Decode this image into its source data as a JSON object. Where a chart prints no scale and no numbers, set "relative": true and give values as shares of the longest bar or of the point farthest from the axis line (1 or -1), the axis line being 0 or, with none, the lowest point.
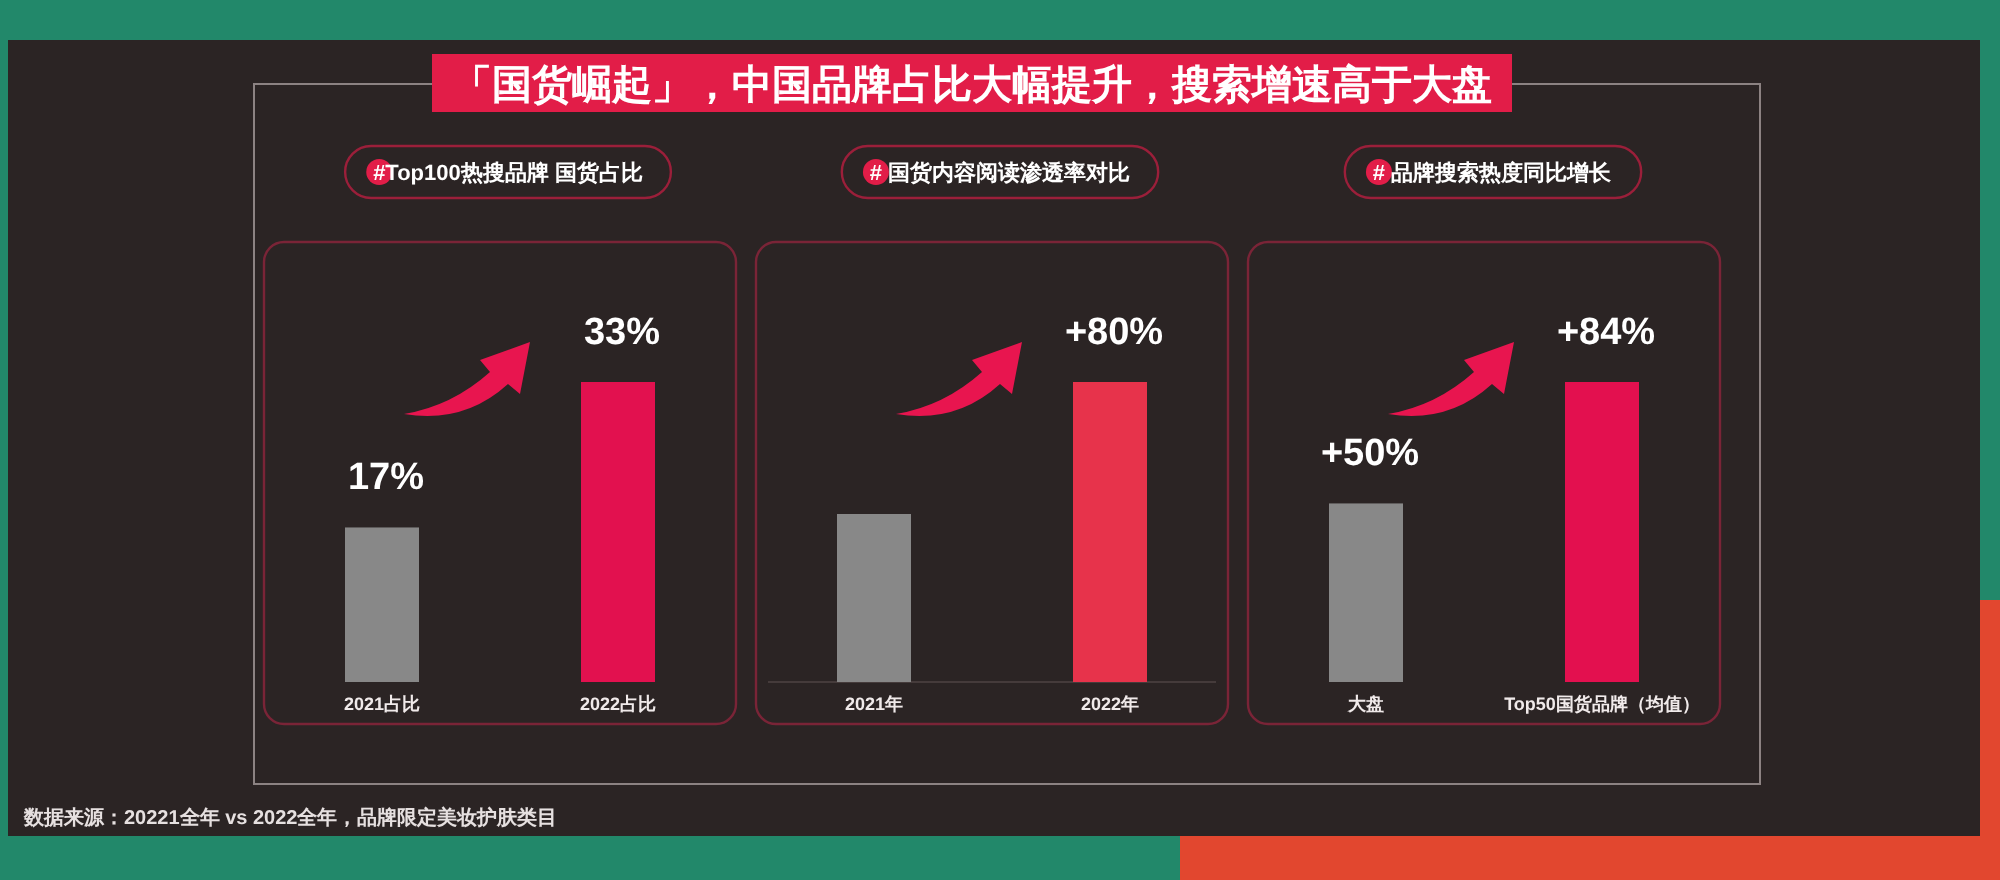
{
  "chart_data": [
    {
      "type": "other",
      "title": "「国货崛起」，中国品牌占比大幅提升，搜索增速高于大盘",
      "annotations": [
        "数据来源：20221全年 vs 2022全年，品牌限定美妆护肤类目"
      ]
    },
    {
      "type": "bar",
      "title": "#Top100热搜品牌 国货占比",
      "categories": [
        "2021占比",
        "2022占比"
      ],
      "values": [
        17,
        33
      ],
      "colors": [
        "#888888",
        "#e2114f"
      ],
      "value_labels": [
        "17%",
        "33%"
      ]
    },
    {
      "type": "bar",
      "title": "# 国货内容阅读渗透率对比",
      "categories": [
        "2021年",
        "2022年"
      ],
      "values": [
        0.56,
        1
      ],
      "relative": true,
      "colors": [
        "#888888",
        "#e7334b"
      ],
      "annotations": [
        {
          "text": "+80%",
          "x": "2022年",
          "y": 1
        }
      ]
    },
    {
      "type": "bar",
      "title": "# 品牌搜索热度同比增长",
      "categories": [
        "大盘",
        "Top50国货品牌（均值）"
      ],
      "values": [
        50,
        84
      ],
      "colors": [
        "#888888",
        "#e3104f"
      ],
      "value_labels": [
        "+50%",
        "+84%"
      ]
    }
  ]
}
